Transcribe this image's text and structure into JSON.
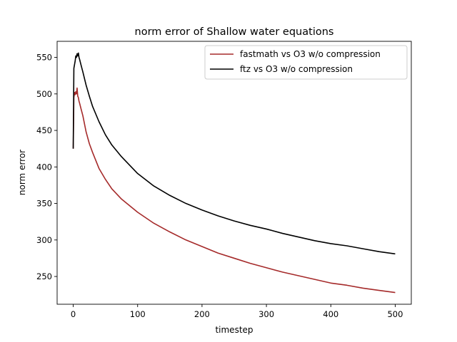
{
  "chart_data": {
    "type": "line",
    "title": "norm error of Shallow water equations",
    "xlabel": "timestep",
    "ylabel": "norm error",
    "xlim": [
      -25,
      525
    ],
    "ylim": [
      212,
      572
    ],
    "xticks": [
      0,
      100,
      200,
      300,
      400,
      500
    ],
    "yticks": [
      250,
      300,
      350,
      400,
      450,
      500,
      550
    ],
    "xtick_labels": [
      "0",
      "100",
      "200",
      "300",
      "400",
      "500"
    ],
    "ytick_labels": [
      "250",
      "300",
      "350",
      "400",
      "450",
      "500",
      "550"
    ],
    "grid": false,
    "legend_position": "top-right",
    "series": [
      {
        "name": "fastmath vs O3 w/o compression",
        "color": "#a52a2a",
        "x": [
          0,
          1,
          2,
          3,
          4,
          5,
          6,
          7,
          8,
          9,
          10,
          12,
          15,
          20,
          25,
          30,
          40,
          50,
          60,
          75,
          100,
          125,
          150,
          175,
          200,
          225,
          250,
          275,
          300,
          325,
          350,
          375,
          400,
          425,
          450,
          475,
          500
        ],
        "y": [
          425,
          495,
          502,
          499,
          503,
          500,
          508,
          497,
          495,
          490,
          487,
          480,
          470,
          448,
          432,
          420,
          398,
          383,
          370,
          356,
          338,
          323,
          311,
          300,
          291,
          282,
          275,
          268,
          262,
          256,
          251,
          246,
          241,
          238,
          234,
          231,
          228
        ]
      },
      {
        "name": "ftz vs O3 w/o compression",
        "color": "#000000",
        "x": [
          0,
          1,
          2,
          3,
          4,
          5,
          6,
          7,
          8,
          9,
          10,
          12,
          15,
          20,
          25,
          30,
          40,
          50,
          60,
          75,
          100,
          125,
          150,
          175,
          200,
          225,
          250,
          275,
          300,
          325,
          350,
          375,
          400,
          425,
          450,
          475,
          500
        ],
        "y": [
          425,
          535,
          540,
          545,
          552,
          550,
          555,
          552,
          556,
          550,
          547,
          540,
          530,
          512,
          497,
          483,
          462,
          444,
          430,
          414,
          391,
          374,
          361,
          350,
          341,
          333,
          326,
          320,
          315,
          309,
          304,
          299,
          295,
          292,
          288,
          284,
          281
        ]
      }
    ]
  }
}
